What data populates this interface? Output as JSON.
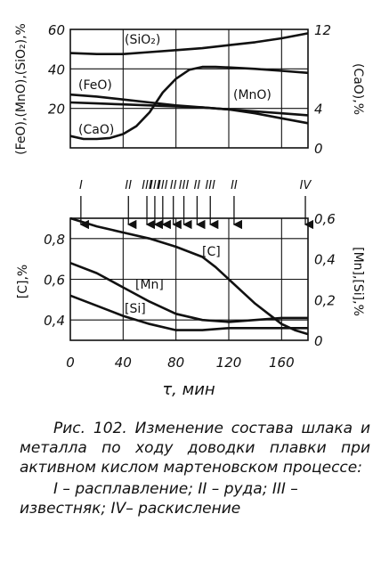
{
  "caption": {
    "title": "Рис. 102. Изменение состава шлака и металла по ходу доводки плавки при активном кислом мартеновском процессе:",
    "legend": "I – расплавление; II – руда; III – известняк; IV– раскисление"
  },
  "xaxis": {
    "label": "τ, мин",
    "ticks": [
      "0",
      "40",
      "80",
      "120",
      "160"
    ]
  },
  "stages": {
    "markers": [
      "I",
      "II",
      "III",
      "III",
      "III",
      "II",
      "III",
      "II",
      "III",
      "II",
      "IV"
    ]
  },
  "chart_data": [
    {
      "type": "line",
      "name": "slag",
      "xlim": [
        0,
        180
      ],
      "xticks": [
        0,
        40,
        80,
        120,
        160
      ],
      "left_axis": {
        "label": "(FeO),(MnO),(SiO₂),%",
        "ylim": [
          0,
          60
        ],
        "ticks": [
          20,
          40,
          60
        ],
        "tick_labels": [
          "20",
          "40",
          "60"
        ]
      },
      "right_axis": {
        "label": "(CaO),%",
        "ylim": [
          0,
          12
        ],
        "ticks": [
          0,
          4,
          8,
          12
        ],
        "tick_labels": [
          "0",
          "4",
          "",
          "12"
        ]
      },
      "series": [
        {
          "name": "(SiO₂)",
          "axis": "left",
          "x": [
            0,
            20,
            40,
            60,
            80,
            100,
            120,
            140,
            160,
            180
          ],
          "y": [
            48,
            47.5,
            47.5,
            48.5,
            49.5,
            50.5,
            52,
            53.5,
            55.5,
            58
          ]
        },
        {
          "name": "(FeO)",
          "axis": "left",
          "x": [
            0,
            20,
            40,
            60,
            80,
            100,
            120,
            140,
            160,
            180
          ],
          "y": [
            27,
            26,
            24.5,
            23,
            21.5,
            20.5,
            19.5,
            18.5,
            17.5,
            16.5
          ]
        },
        {
          "name": "(MnO)",
          "axis": "left",
          "x": [
            0,
            20,
            40,
            60,
            80,
            100,
            120,
            140,
            160,
            180
          ],
          "y": [
            23,
            22.5,
            22,
            21.5,
            21,
            20.5,
            19.5,
            17.5,
            15,
            12.5
          ]
        },
        {
          "name": "(CaO)",
          "axis": "right",
          "x": [
            0,
            10,
            20,
            30,
            40,
            50,
            60,
            70,
            80,
            90,
            100,
            110,
            120,
            140,
            160,
            180
          ],
          "y": [
            1.2,
            0.9,
            0.9,
            1.0,
            1.4,
            2.2,
            3.6,
            5.6,
            7.0,
            7.9,
            8.2,
            8.2,
            8.15,
            8.0,
            7.8,
            7.6
          ]
        }
      ]
    },
    {
      "type": "line",
      "name": "metal",
      "xlim": [
        0,
        180
      ],
      "xticks": [
        0,
        40,
        80,
        120,
        160
      ],
      "left_axis": {
        "label": "[C],%",
        "ylim": [
          0.3,
          0.9
        ],
        "ticks": [
          0.4,
          0.6,
          0.8
        ],
        "tick_labels": [
          "0,4",
          "0,6",
          "0,8"
        ]
      },
      "right_axis": {
        "label": "[Mn],[Si],%",
        "ylim": [
          0,
          0.6
        ],
        "ticks": [
          0,
          0.2,
          0.4,
          0.6
        ],
        "tick_labels": [
          "0",
          "0,2",
          "0,4",
          "0,6"
        ]
      },
      "series": [
        {
          "name": "[C]",
          "axis": "left",
          "x": [
            0,
            20,
            40,
            60,
            80,
            100,
            110,
            120,
            130,
            140,
            150,
            160,
            170,
            180
          ],
          "y": [
            0.9,
            0.86,
            0.83,
            0.8,
            0.76,
            0.71,
            0.66,
            0.6,
            0.54,
            0.48,
            0.43,
            0.38,
            0.35,
            0.33
          ]
        },
        {
          "name": "[Mn]",
          "axis": "right",
          "x": [
            0,
            20,
            40,
            60,
            80,
            100,
            120,
            140,
            160,
            180
          ],
          "y": [
            0.38,
            0.33,
            0.26,
            0.19,
            0.13,
            0.1,
            0.09,
            0.1,
            0.11,
            0.11
          ]
        },
        {
          "name": "[Si]",
          "axis": "right",
          "x": [
            0,
            20,
            40,
            60,
            80,
            100,
            120,
            140,
            160,
            180
          ],
          "y": [
            0.22,
            0.17,
            0.12,
            0.08,
            0.05,
            0.05,
            0.06,
            0.06,
            0.06,
            0.06
          ]
        }
      ]
    }
  ],
  "stage_times": [
    8,
    44,
    58,
    64,
    70,
    78,
    86,
    96,
    106,
    124,
    178
  ]
}
